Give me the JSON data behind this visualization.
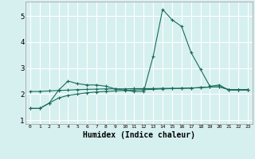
{
  "background_color": "#d6f0f0",
  "grid_color": "#ffffff",
  "line_color": "#1a6b5a",
  "xlabel": "Humidex (Indice chaleur)",
  "xlabel_fontsize": 7,
  "yticks": [
    1,
    2,
    3,
    4,
    5
  ],
  "xticks": [
    0,
    1,
    2,
    3,
    4,
    5,
    6,
    7,
    8,
    9,
    10,
    11,
    12,
    13,
    14,
    15,
    16,
    17,
    18,
    19,
    20,
    21,
    22,
    23
  ],
  "xlim": [
    -0.5,
    23.5
  ],
  "ylim": [
    0.85,
    5.55
  ],
  "curve1_x": [
    0,
    1,
    2,
    3,
    4,
    5,
    6,
    7,
    8,
    9,
    10,
    11,
    12,
    13,
    14,
    15,
    16,
    17,
    18,
    19,
    20,
    21,
    22,
    23
  ],
  "curve1_y": [
    1.45,
    1.45,
    1.65,
    2.15,
    2.5,
    2.4,
    2.35,
    2.35,
    2.3,
    2.2,
    2.15,
    2.1,
    2.1,
    3.45,
    5.25,
    4.85,
    4.6,
    3.6,
    2.95,
    2.3,
    2.35,
    2.15,
    2.15,
    2.15
  ],
  "curve2_x": [
    0,
    1,
    2,
    3,
    4,
    5,
    6,
    7,
    8,
    9,
    10,
    11,
    12,
    13,
    14,
    15,
    16,
    17,
    18,
    19,
    20,
    21,
    22,
    23
  ],
  "curve2_y": [
    2.1,
    2.1,
    2.12,
    2.14,
    2.15,
    2.17,
    2.18,
    2.19,
    2.2,
    2.2,
    2.2,
    2.21,
    2.21,
    2.21,
    2.22,
    2.22,
    2.22,
    2.23,
    2.25,
    2.27,
    2.28,
    2.17,
    2.17,
    2.17
  ],
  "curve3_x": [
    0,
    1,
    2,
    3,
    4,
    5,
    6,
    7,
    8,
    9,
    10,
    11,
    12,
    13,
    14,
    15,
    16,
    17,
    18,
    19,
    20,
    21,
    22,
    23
  ],
  "curve3_y": [
    1.45,
    1.45,
    1.65,
    1.85,
    1.95,
    2.0,
    2.05,
    2.08,
    2.1,
    2.12,
    2.14,
    2.16,
    2.17,
    2.18,
    2.2,
    2.21,
    2.22,
    2.23,
    2.25,
    2.27,
    2.28,
    2.17,
    2.17,
    2.17
  ]
}
